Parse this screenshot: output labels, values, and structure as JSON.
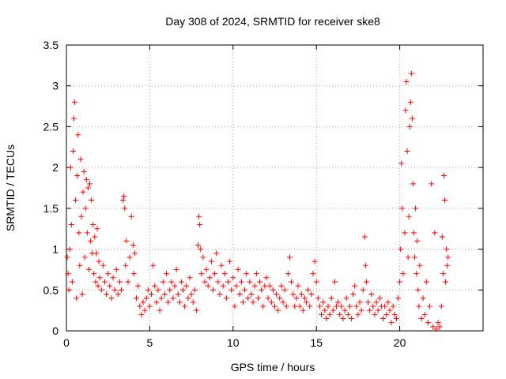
{
  "chart_data": {
    "type": "scatter",
    "title": "Day 308 of 2024, SRMTID for receiver ske8",
    "xlabel": "GPS time / hours",
    "ylabel": "SRMTID / TECUs",
    "xlim": [
      0,
      25
    ],
    "ylim": [
      0,
      3.5
    ],
    "xticks": [
      0,
      5,
      10,
      15,
      20
    ],
    "xtick_labels": [
      "0",
      "5",
      "10",
      "15",
      "20"
    ],
    "yticks": [
      0,
      0.5,
      1,
      1.5,
      2,
      2.5,
      3,
      3.5
    ],
    "ytick_labels": [
      "0",
      "0.5",
      "1",
      "1.5",
      "2",
      "2.5",
      "3",
      "3.5"
    ],
    "grid": true,
    "marker": "+",
    "series": [
      {
        "name": "SRMTID",
        "color": "#ff0000",
        "points": [
          [
            0.05,
            0.9
          ],
          [
            0.1,
            0.7
          ],
          [
            0.15,
            0.5
          ],
          [
            0.2,
            1.0
          ],
          [
            0.25,
            2.0
          ],
          [
            0.3,
            1.3
          ],
          [
            0.35,
            0.6
          ],
          [
            0.4,
            2.2
          ],
          [
            0.45,
            2.6
          ],
          [
            0.5,
            2.8
          ],
          [
            0.55,
            1.6
          ],
          [
            0.6,
            0.4
          ],
          [
            0.65,
            1.9
          ],
          [
            0.7,
            2.4
          ],
          [
            0.75,
            1.2
          ],
          [
            0.8,
            0.8
          ],
          [
            0.85,
            2.1
          ],
          [
            0.9,
            1.4
          ],
          [
            0.95,
            0.45
          ],
          [
            1.0,
            1.7
          ],
          [
            1.05,
            1.95
          ],
          [
            1.1,
            0.9
          ],
          [
            1.15,
            1.5
          ],
          [
            1.2,
            1.85
          ],
          [
            1.25,
            1.2
          ],
          [
            1.3,
            1.75
          ],
          [
            1.35,
            0.75
          ],
          [
            1.4,
            1.8
          ],
          [
            1.45,
            1.1
          ],
          [
            1.5,
            1.6
          ],
          [
            1.55,
            0.95
          ],
          [
            1.6,
            1.3
          ],
          [
            1.65,
            0.7
          ],
          [
            1.7,
            1.15
          ],
          [
            1.75,
            0.6
          ],
          [
            1.8,
            0.95
          ],
          [
            1.85,
            1.25
          ],
          [
            1.9,
            0.55
          ],
          [
            1.95,
            0.85
          ],
          [
            2.0,
            0.65
          ],
          [
            2.1,
            0.5
          ],
          [
            2.2,
            0.8
          ],
          [
            2.3,
            0.6
          ],
          [
            2.4,
            0.45
          ],
          [
            2.5,
            0.7
          ],
          [
            2.6,
            0.55
          ],
          [
            2.7,
            0.4
          ],
          [
            2.8,
            0.65
          ],
          [
            2.9,
            0.5
          ],
          [
            3.0,
            0.75
          ],
          [
            3.1,
            0.45
          ],
          [
            3.2,
            0.6
          ],
          [
            3.3,
            0.5
          ],
          [
            3.4,
            1.6
          ],
          [
            3.45,
            1.65
          ],
          [
            3.5,
            1.5
          ],
          [
            3.55,
            0.8
          ],
          [
            3.6,
            1.1
          ],
          [
            3.7,
            0.6
          ],
          [
            3.8,
            0.9
          ],
          [
            3.9,
            1.4
          ],
          [
            4.0,
            1.05
          ],
          [
            4.05,
            0.7
          ],
          [
            4.1,
            0.95
          ],
          [
            4.2,
            0.4
          ],
          [
            4.3,
            0.55
          ],
          [
            4.4,
            0.3
          ],
          [
            4.5,
            0.2
          ],
          [
            4.6,
            0.35
          ],
          [
            4.7,
            0.25
          ],
          [
            4.8,
            0.4
          ],
          [
            4.9,
            0.5
          ],
          [
            5.0,
            0.3
          ],
          [
            5.1,
            0.45
          ],
          [
            5.2,
            0.8
          ],
          [
            5.3,
            0.55
          ],
          [
            5.4,
            0.35
          ],
          [
            5.5,
            0.5
          ],
          [
            5.6,
            0.25
          ],
          [
            5.7,
            0.4
          ],
          [
            5.8,
            0.6
          ],
          [
            5.9,
            0.45
          ],
          [
            6.0,
            0.7
          ],
          [
            6.1,
            0.35
          ],
          [
            6.2,
            0.5
          ],
          [
            6.3,
            0.6
          ],
          [
            6.4,
            0.4
          ],
          [
            6.5,
            0.55
          ],
          [
            6.6,
            0.75
          ],
          [
            6.7,
            0.45
          ],
          [
            6.8,
            0.35
          ],
          [
            6.9,
            0.6
          ],
          [
            7.0,
            0.5
          ],
          [
            7.1,
            0.3
          ],
          [
            7.2,
            0.55
          ],
          [
            7.3,
            0.4
          ],
          [
            7.4,
            0.65
          ],
          [
            7.5,
            0.45
          ],
          [
            7.6,
            0.35
          ],
          [
            7.7,
            0.5
          ],
          [
            7.8,
            0.25
          ],
          [
            7.9,
            1.05
          ],
          [
            7.95,
            1.4
          ],
          [
            8.0,
            1.3
          ],
          [
            8.05,
            1.0
          ],
          [
            8.1,
            0.7
          ],
          [
            8.2,
            0.9
          ],
          [
            8.3,
            0.6
          ],
          [
            8.4,
            0.75
          ],
          [
            8.5,
            0.55
          ],
          [
            8.6,
            0.65
          ],
          [
            8.7,
            0.85
          ],
          [
            8.8,
            0.5
          ],
          [
            8.9,
            0.7
          ],
          [
            9.0,
            0.95
          ],
          [
            9.1,
            0.6
          ],
          [
            9.2,
            0.45
          ],
          [
            9.3,
            0.8
          ],
          [
            9.4,
            0.55
          ],
          [
            9.5,
            0.7
          ],
          [
            9.6,
            0.4
          ],
          [
            9.7,
            0.6
          ],
          [
            9.8,
            0.85
          ],
          [
            9.9,
            0.5
          ],
          [
            10.0,
            0.65
          ],
          [
            10.1,
            0.3
          ],
          [
            10.2,
            0.55
          ],
          [
            10.3,
            0.75
          ],
          [
            10.4,
            0.45
          ],
          [
            10.5,
            0.6
          ],
          [
            10.6,
            0.35
          ],
          [
            10.7,
            0.5
          ],
          [
            10.8,
            0.7
          ],
          [
            10.9,
            0.4
          ],
          [
            11.0,
            0.6
          ],
          [
            11.1,
            0.45
          ],
          [
            11.2,
            0.35
          ],
          [
            11.3,
            0.55
          ],
          [
            11.4,
            0.7
          ],
          [
            11.5,
            0.4
          ],
          [
            11.6,
            0.6
          ],
          [
            11.7,
            0.5
          ],
          [
            11.8,
            0.3
          ],
          [
            11.9,
            0.55
          ],
          [
            12.0,
            0.65
          ],
          [
            12.1,
            0.4
          ],
          [
            12.2,
            0.55
          ],
          [
            12.3,
            0.35
          ],
          [
            12.4,
            0.5
          ],
          [
            12.5,
            0.3
          ],
          [
            12.6,
            0.45
          ],
          [
            12.7,
            0.25
          ],
          [
            12.8,
            0.4
          ],
          [
            12.9,
            0.55
          ],
          [
            13.0,
            0.35
          ],
          [
            13.1,
            0.5
          ],
          [
            13.2,
            0.3
          ],
          [
            13.3,
            0.7
          ],
          [
            13.4,
            0.9
          ],
          [
            13.5,
            0.6
          ],
          [
            13.6,
            0.45
          ],
          [
            13.7,
            0.3
          ],
          [
            13.8,
            0.4
          ],
          [
            13.9,
            0.55
          ],
          [
            14.0,
            0.3
          ],
          [
            14.1,
            0.45
          ],
          [
            14.2,
            0.25
          ],
          [
            14.3,
            0.4
          ],
          [
            14.4,
            0.35
          ],
          [
            14.5,
            0.5
          ],
          [
            14.6,
            0.3
          ],
          [
            14.7,
            0.45
          ],
          [
            14.8,
            0.7
          ],
          [
            14.9,
            0.85
          ],
          [
            15.0,
            0.6
          ],
          [
            15.1,
            0.4
          ],
          [
            15.2,
            0.3
          ],
          [
            15.3,
            0.2
          ],
          [
            15.4,
            0.35
          ],
          [
            15.5,
            0.25
          ],
          [
            15.6,
            0.15
          ],
          [
            15.7,
            0.3
          ],
          [
            15.8,
            0.2
          ],
          [
            15.9,
            0.4
          ],
          [
            16.0,
            0.25
          ],
          [
            16.1,
            0.6
          ],
          [
            16.2,
            0.3
          ],
          [
            16.3,
            0.35
          ],
          [
            16.4,
            0.2
          ],
          [
            16.5,
            0.3
          ],
          [
            16.6,
            0.15
          ],
          [
            16.7,
            0.25
          ],
          [
            16.8,
            0.4
          ],
          [
            16.9,
            0.2
          ],
          [
            17.0,
            0.3
          ],
          [
            17.1,
            0.15
          ],
          [
            17.2,
            0.45
          ],
          [
            17.3,
            0.55
          ],
          [
            17.4,
            0.3
          ],
          [
            17.5,
            0.2
          ],
          [
            17.6,
            0.35
          ],
          [
            17.7,
            0.25
          ],
          [
            17.8,
            0.5
          ],
          [
            17.9,
            1.15
          ],
          [
            17.95,
            0.8
          ],
          [
            18.0,
            0.6
          ],
          [
            18.1,
            0.35
          ],
          [
            18.2,
            0.25
          ],
          [
            18.3,
            0.45
          ],
          [
            18.4,
            0.3
          ],
          [
            18.5,
            0.2
          ],
          [
            18.6,
            0.35
          ],
          [
            18.7,
            0.25
          ],
          [
            18.8,
            0.4
          ],
          [
            18.9,
            0.3
          ],
          [
            19.0,
            0.15
          ],
          [
            19.1,
            0.3
          ],
          [
            19.2,
            0.2
          ],
          [
            19.3,
            0.35
          ],
          [
            19.4,
            0.25
          ],
          [
            19.5,
            0.1
          ],
          [
            19.6,
            0.3
          ],
          [
            19.7,
            0.2
          ],
          [
            19.8,
            0.15
          ],
          [
            19.9,
            0.4
          ],
          [
            20.0,
            0.6
          ],
          [
            20.05,
            1.0
          ],
          [
            20.1,
            2.05
          ],
          [
            20.15,
            1.5
          ],
          [
            20.2,
            0.7
          ],
          [
            20.3,
            1.2
          ],
          [
            20.35,
            2.7
          ],
          [
            20.4,
            3.05
          ],
          [
            20.45,
            2.2
          ],
          [
            20.5,
            0.9
          ],
          [
            20.55,
            1.4
          ],
          [
            20.6,
            2.5
          ],
          [
            20.65,
            2.8
          ],
          [
            20.7,
            3.15
          ],
          [
            20.75,
            2.6
          ],
          [
            20.8,
            1.8
          ],
          [
            20.85,
            1.2
          ],
          [
            20.9,
            0.9
          ],
          [
            20.95,
            1.5
          ],
          [
            21.0,
            0.7
          ],
          [
            21.05,
            1.1
          ],
          [
            21.1,
            0.5
          ],
          [
            21.15,
            0.3
          ],
          [
            21.2,
            0.8
          ],
          [
            21.3,
            0.15
          ],
          [
            21.4,
            0.4
          ],
          [
            21.5,
            0.2
          ],
          [
            21.6,
            0.6
          ],
          [
            21.7,
            0.1
          ],
          [
            21.8,
            0.3
          ],
          [
            21.9,
            1.8
          ],
          [
            22.0,
            0.05
          ],
          [
            22.1,
            1.2
          ],
          [
            22.2,
            0.02
          ],
          [
            22.3,
            0.1
          ],
          [
            22.4,
            0.05
          ],
          [
            22.5,
            0.3
          ],
          [
            22.55,
            1.15
          ],
          [
            22.6,
            0.7
          ],
          [
            22.65,
            1.9
          ],
          [
            22.7,
            1.6
          ],
          [
            22.75,
            0.6
          ],
          [
            22.8,
            1.0
          ],
          [
            22.85,
            0.8
          ],
          [
            22.9,
            0.9
          ]
        ]
      }
    ]
  }
}
